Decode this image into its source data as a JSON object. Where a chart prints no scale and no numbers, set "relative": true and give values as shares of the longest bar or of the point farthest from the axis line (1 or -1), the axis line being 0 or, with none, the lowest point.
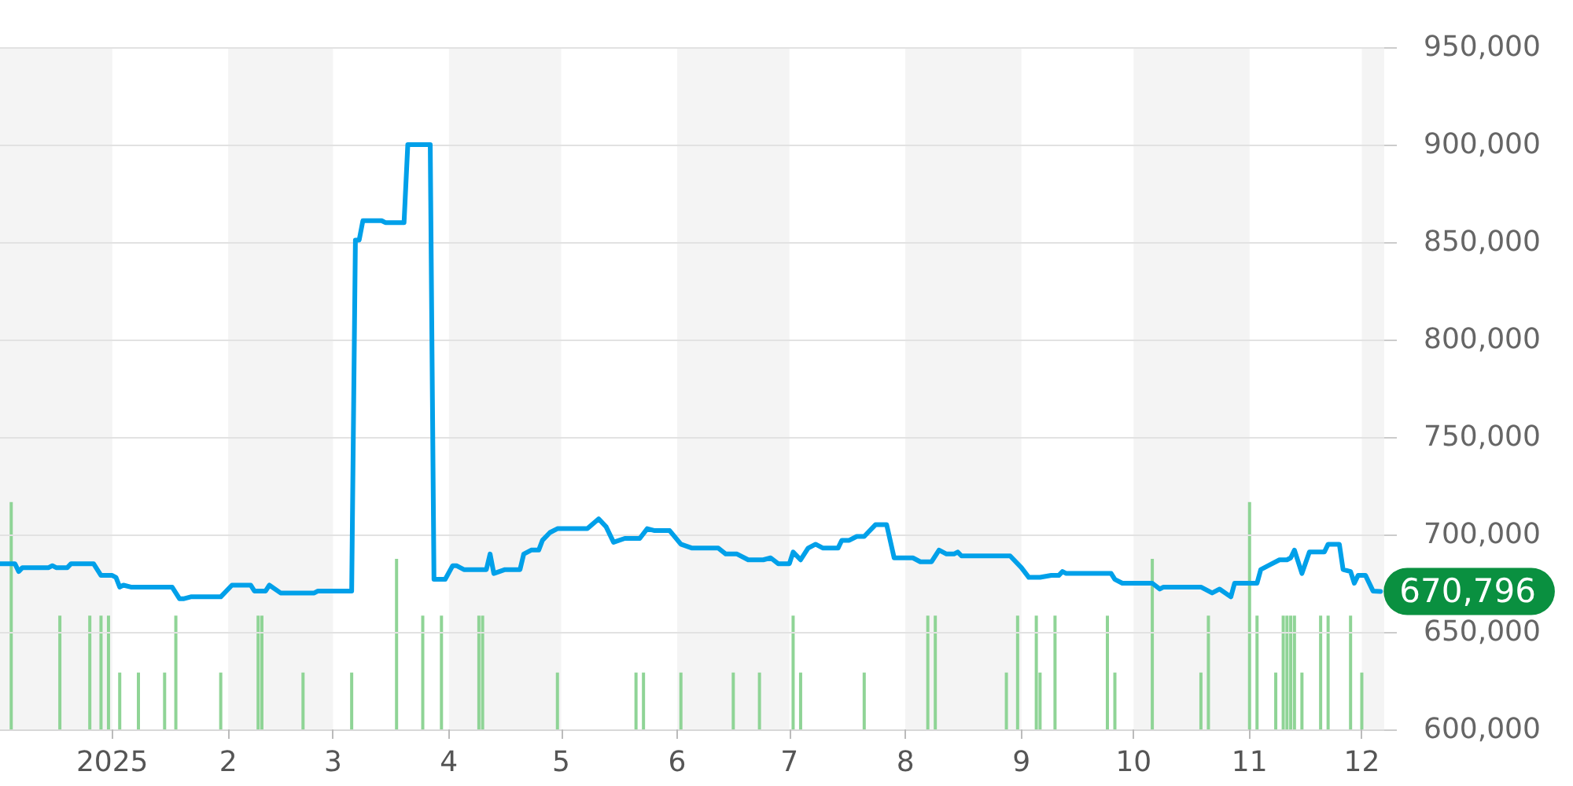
{
  "chart_data": [
    {
      "type": "line",
      "x": [
        "2024-12-02",
        "2024-12-06",
        "2024-12-07",
        "2024-12-08",
        "2024-12-15",
        "2024-12-16",
        "2024-12-17",
        "2024-12-20",
        "2024-12-21",
        "2024-12-27",
        "2024-12-29",
        "2025-01-01",
        "2025-01-02",
        "2025-01-03",
        "2025-01-04",
        "2025-01-06",
        "2025-01-17",
        "2025-01-19",
        "2025-01-20",
        "2025-01-22",
        "2025-01-30",
        "2025-02-02",
        "2025-02-07",
        "2025-02-08",
        "2025-02-11",
        "2025-02-12",
        "2025-02-15",
        "2025-02-24",
        "2025-02-25",
        "2025-03-06",
        "2025-03-07",
        "2025-03-08",
        "2025-03-09",
        "2025-03-14",
        "2025-03-15",
        "2025-03-20",
        "2025-03-21",
        "2025-03-27",
        "2025-03-28",
        "2025-03-31",
        "2025-04-02",
        "2025-04-03",
        "2025-04-05",
        "2025-04-11",
        "2025-04-12",
        "2025-04-13",
        "2025-04-16",
        "2025-04-20",
        "2025-04-21",
        "2025-04-23",
        "2025-04-25",
        "2025-04-26",
        "2025-04-28",
        "2025-04-30",
        "2025-05-08",
        "2025-05-11",
        "2025-05-13",
        "2025-05-15",
        "2025-05-18",
        "2025-05-22",
        "2025-05-24",
        "2025-05-26",
        "2025-05-30",
        "2025-06-02",
        "2025-06-05",
        "2025-06-12",
        "2025-06-14",
        "2025-06-17",
        "2025-06-20",
        "2025-06-24",
        "2025-06-26",
        "2025-06-28",
        "2025-07-01",
        "2025-07-02",
        "2025-07-04",
        "2025-07-06",
        "2025-07-08",
        "2025-07-10",
        "2025-07-14",
        "2025-07-15",
        "2025-07-17",
        "2025-07-19",
        "2025-07-21",
        "2025-07-22",
        "2025-07-24",
        "2025-07-27",
        "2025-07-29",
        "2025-08-03",
        "2025-08-05",
        "2025-08-08",
        "2025-08-10",
        "2025-08-12",
        "2025-08-14",
        "2025-08-15",
        "2025-08-16",
        "2025-08-29",
        "2025-09-01",
        "2025-09-03",
        "2025-09-06",
        "2025-09-09",
        "2025-09-11",
        "2025-09-12",
        "2025-09-13",
        "2025-09-25",
        "2025-09-26",
        "2025-09-28",
        "2025-10-06",
        "2025-10-08",
        "2025-10-09",
        "2025-10-19",
        "2025-10-22",
        "2025-10-24",
        "2025-10-27",
        "2025-10-28",
        "2025-11-03",
        "2025-11-04",
        "2025-11-06",
        "2025-11-09",
        "2025-11-11",
        "2025-11-12",
        "2025-11-13",
        "2025-11-15",
        "2025-11-17",
        "2025-11-21",
        "2025-11-22",
        "2025-11-25",
        "2025-11-26",
        "2025-11-28",
        "2025-11-29",
        "2025-11-30",
        "2025-12-02",
        "2025-12-04",
        "2025-12-06"
      ],
      "series": [
        {
          "color": "#00a0e9",
          "values": [
            685000,
            685000,
            681000,
            683000,
            683000,
            684000,
            683000,
            683000,
            685000,
            685000,
            679000,
            679000,
            678000,
            673000,
            674000,
            673000,
            673000,
            667000,
            667000,
            668000,
            668000,
            674000,
            674000,
            671000,
            671000,
            674000,
            670000,
            670000,
            671000,
            671000,
            851000,
            851000,
            861000,
            861000,
            860000,
            860000,
            900000,
            900000,
            677000,
            677000,
            684000,
            684000,
            682000,
            682000,
            690000,
            680000,
            682000,
            682000,
            690000,
            692000,
            692000,
            697000,
            701000,
            703000,
            703000,
            708000,
            704000,
            696000,
            698000,
            698000,
            703000,
            702000,
            702000,
            695000,
            693000,
            693000,
            690000,
            690000,
            687000,
            687000,
            688000,
            685000,
            685000,
            691000,
            687000,
            693000,
            695000,
            693000,
            693000,
            697000,
            697000,
            699000,
            699000,
            701000,
            705000,
            705000,
            688000,
            688000,
            686000,
            686000,
            692000,
            690000,
            690000,
            691000,
            689000,
            689000,
            683000,
            678000,
            678000,
            679000,
            679000,
            681000,
            680000,
            680000,
            677000,
            675000,
            675000,
            672000,
            673000,
            673000,
            670000,
            672000,
            668000,
            675000,
            675000,
            682000,
            684000,
            687000,
            687000,
            688000,
            692000,
            680000,
            691000,
            691000,
            695000,
            695000,
            682000,
            681000,
            675000,
            679000,
            679000,
            671000,
            670796
          ]
        }
      ],
      "xlim": [
        "2024-12-02",
        "2025-12-07"
      ],
      "xticks": [
        {
          "value": "2025-01-01",
          "label": "2025"
        },
        {
          "value": "2025-02-01",
          "label": "2"
        },
        {
          "value": "2025-03-01",
          "label": "3"
        },
        {
          "value": "2025-04-01",
          "label": "4"
        },
        {
          "value": "2025-05-01",
          "label": "5"
        },
        {
          "value": "2025-06-01",
          "label": "6"
        },
        {
          "value": "2025-07-01",
          "label": "7"
        },
        {
          "value": "2025-08-01",
          "label": "8"
        },
        {
          "value": "2025-09-01",
          "label": "9"
        },
        {
          "value": "2025-10-01",
          "label": "10"
        },
        {
          "value": "2025-11-01",
          "label": "11"
        },
        {
          "value": "2025-12-01",
          "label": "12"
        }
      ],
      "ylim": [
        600000,
        950000
      ],
      "yticks": [
        {
          "value": 600000,
          "label": "600,000"
        },
        {
          "value": 650000,
          "label": "650,000"
        },
        {
          "value": 700000,
          "label": "700,000"
        },
        {
          "value": 750000,
          "label": "750,000"
        },
        {
          "value": 800000,
          "label": "800,000"
        },
        {
          "value": 850000,
          "label": "850,000"
        },
        {
          "value": 900000,
          "label": "900,000"
        },
        {
          "value": 950000,
          "label": "950,000"
        }
      ],
      "grid": "y",
      "annotations": [
        {
          "text": "670,796",
          "x": "2025-12-06",
          "y": 670796
        }
      ]
    },
    {
      "type": "bar",
      "relative": true,
      "tick_labels": false,
      "x": [
        "2024-12-05",
        "2024-12-18",
        "2024-12-26",
        "2024-12-29",
        "2024-12-31",
        "2025-01-03",
        "2025-01-08",
        "2025-01-15",
        "2025-01-18",
        "2025-01-30",
        "2025-02-09",
        "2025-02-10",
        "2025-02-21",
        "2025-03-06",
        "2025-03-18",
        "2025-03-25",
        "2025-03-30",
        "2025-04-09",
        "2025-04-10",
        "2025-04-30",
        "2025-05-21",
        "2025-05-23",
        "2025-06-02",
        "2025-06-16",
        "2025-06-23",
        "2025-07-02",
        "2025-07-04",
        "2025-07-21",
        "2025-08-07",
        "2025-08-09",
        "2025-08-28",
        "2025-08-31",
        "2025-09-05",
        "2025-09-06",
        "2025-09-10",
        "2025-09-24",
        "2025-09-26",
        "2025-10-06",
        "2025-10-19",
        "2025-10-21",
        "2025-11-01",
        "2025-11-03",
        "2025-11-08",
        "2025-11-10",
        "2025-11-11",
        "2025-11-12",
        "2025-11-13",
        "2025-11-15",
        "2025-11-20",
        "2025-11-22",
        "2025-11-28",
        "2025-12-01"
      ],
      "series": [
        {
          "color": "#8fd496",
          "values": [
            1,
            0.5,
            0.5,
            0.5,
            0.5,
            0.25,
            0.25,
            0.25,
            0.5,
            0.25,
            0.5,
            0.5,
            0.25,
            0.25,
            0.75,
            0.5,
            0.5,
            0.5,
            0.5,
            0.25,
            0.25,
            0.25,
            0.25,
            0.25,
            0.25,
            0.5,
            0.25,
            0.25,
            0.5,
            0.5,
            0.25,
            0.5,
            0.5,
            0.25,
            0.5,
            0.5,
            0.25,
            0.75,
            0.25,
            0.5,
            1,
            0.5,
            0.25,
            0.5,
            0.5,
            0.5,
            0.5,
            0.25,
            0.5,
            0.5,
            0.5,
            0.25
          ]
        }
      ],
      "xlim": [
        "2024-12-02",
        "2025-12-07"
      ],
      "bands": [
        {
          "axis": "x",
          "from": "2024-12-02",
          "to": "2025-01-01",
          "color": "#f4f4f4"
        },
        {
          "axis": "x",
          "from": "2025-02-01",
          "to": "2025-03-01",
          "color": "#f4f4f4"
        },
        {
          "axis": "x",
          "from": "2025-04-01",
          "to": "2025-05-01",
          "color": "#f4f4f4"
        },
        {
          "axis": "x",
          "from": "2025-06-01",
          "to": "2025-07-01",
          "color": "#f4f4f4"
        },
        {
          "axis": "x",
          "from": "2025-08-01",
          "to": "2025-09-01",
          "color": "#f4f4f4"
        },
        {
          "axis": "x",
          "from": "2025-10-01",
          "to": "2025-11-01",
          "color": "#f4f4f4"
        },
        {
          "axis": "x",
          "from": "2025-12-01",
          "to": "2025-12-07",
          "color": "#f4f4f4"
        }
      ]
    }
  ]
}
